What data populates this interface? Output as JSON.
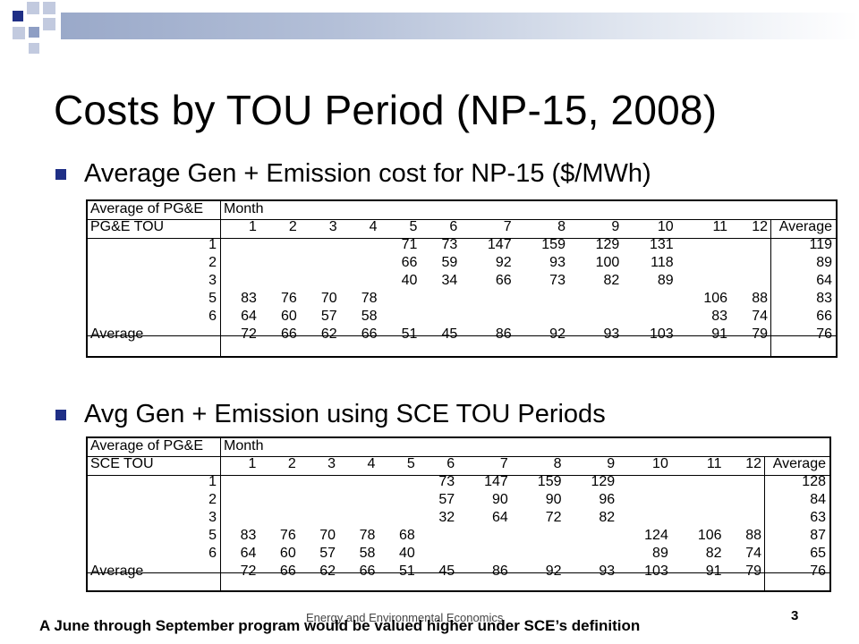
{
  "slide": {
    "title": "Costs by TOU Period (NP-15, 2008)",
    "bullet1": "Average Gen + Emission cost for NP-15 ($/MWh)",
    "bullet2": "Avg Gen + Emission using SCE TOU Periods",
    "footer": "Energy and Environmental Economics",
    "page_number": "3",
    "note": "A June through September program would be valued higher under SCE’s definition",
    "accent_color": "#1f2f86"
  },
  "table1": {
    "corner_label": "Average of PG&E",
    "column_group": "Month",
    "row_field": "PG&E TOU",
    "columns": [
      "1",
      "2",
      "3",
      "4",
      "5",
      "6",
      "7",
      "8",
      "9",
      "10",
      "11",
      "12",
      "Average"
    ],
    "rows": [
      {
        "label": "1",
        "values": [
          "",
          "",
          "",
          "",
          "71",
          "73",
          "147",
          "159",
          "129",
          "131",
          "",
          "",
          "119"
        ]
      },
      {
        "label": "2",
        "values": [
          "",
          "",
          "",
          "",
          "66",
          "59",
          "92",
          "93",
          "100",
          "118",
          "",
          "",
          "89"
        ]
      },
      {
        "label": "3",
        "values": [
          "",
          "",
          "",
          "",
          "40",
          "34",
          "66",
          "73",
          "82",
          "89",
          "",
          "",
          "64"
        ]
      },
      {
        "label": "5",
        "values": [
          "83",
          "76",
          "70",
          "78",
          "",
          "",
          "",
          "",
          "",
          "",
          "106",
          "88",
          "83"
        ]
      },
      {
        "label": "6",
        "values": [
          "64",
          "60",
          "57",
          "58",
          "",
          "",
          "",
          "",
          "",
          "",
          "83",
          "74",
          "66"
        ]
      }
    ],
    "total": {
      "label": "Average",
      "values": [
        "72",
        "66",
        "62",
        "66",
        "51",
        "45",
        "86",
        "92",
        "93",
        "103",
        "91",
        "79",
        "76"
      ]
    }
  },
  "table2": {
    "corner_label": "Average of PG&E",
    "column_group": "Month",
    "row_field": "SCE TOU",
    "columns": [
      "1",
      "2",
      "3",
      "4",
      "5",
      "6",
      "7",
      "8",
      "9",
      "10",
      "11",
      "12",
      "Average"
    ],
    "rows": [
      {
        "label": "1",
        "values": [
          "",
          "",
          "",
          "",
          "",
          "73",
          "147",
          "159",
          "129",
          "",
          "",
          "",
          "128"
        ]
      },
      {
        "label": "2",
        "values": [
          "",
          "",
          "",
          "",
          "",
          "57",
          "90",
          "90",
          "96",
          "",
          "",
          "",
          "84"
        ]
      },
      {
        "label": "3",
        "values": [
          "",
          "",
          "",
          "",
          "",
          "32",
          "64",
          "72",
          "82",
          "",
          "",
          "",
          "63"
        ]
      },
      {
        "label": "5",
        "values": [
          "83",
          "76",
          "70",
          "78",
          "68",
          "",
          "",
          "",
          "",
          "124",
          "106",
          "88",
          "87"
        ]
      },
      {
        "label": "6",
        "values": [
          "64",
          "60",
          "57",
          "58",
          "40",
          "",
          "",
          "",
          "",
          "89",
          "82",
          "74",
          "65"
        ]
      }
    ],
    "total": {
      "label": "Average",
      "values": [
        "72",
        "66",
        "62",
        "66",
        "51",
        "45",
        "86",
        "92",
        "93",
        "103",
        "91",
        "79",
        "76"
      ]
    }
  }
}
